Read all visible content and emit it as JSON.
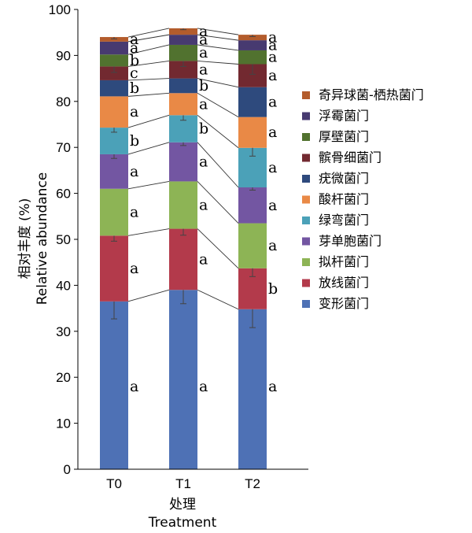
{
  "chart_data": {
    "type": "bar",
    "stacked": true,
    "categories": [
      "T0",
      "T1",
      "T2"
    ],
    "xlabel": "处理",
    "xlabel_en": "Treatment",
    "ylabel": "相对丰度 (%)",
    "ylabel_en": "Relative abundance",
    "ylim": [
      0,
      100
    ],
    "yticks": [
      0,
      10,
      20,
      30,
      40,
      50,
      60,
      70,
      80,
      90,
      100
    ],
    "grid": false,
    "legend_position": "right",
    "series": [
      {
        "name": "变形菌门",
        "color": "#4e71b5",
        "values": [
          36.5,
          39.0,
          34.8
        ],
        "errors": [
          3.8,
          3.0,
          4.0
        ],
        "sig": [
          "a",
          "a",
          "a"
        ]
      },
      {
        "name": "放线菌门",
        "color": "#b33a4b",
        "values": [
          14.3,
          13.3,
          8.9
        ],
        "errors": [
          1.2,
          1.4,
          1.8
        ],
        "sig": [
          "a",
          "a",
          "b"
        ]
      },
      {
        "name": "拟杆菌门",
        "color": "#8db455",
        "values": [
          10.2,
          10.3,
          9.8
        ],
        "errors": [
          0.0,
          0.0,
          0.0
        ],
        "sig": [
          "a",
          "a",
          "a"
        ]
      },
      {
        "name": "芽单胞菌门",
        "color": "#7356a2",
        "values": [
          7.5,
          8.5,
          7.8
        ],
        "errors": [
          0.9,
          0.7,
          0.6
        ],
        "sig": [
          "a",
          "a",
          "a"
        ]
      },
      {
        "name": "绿弯菌门",
        "color": "#4ba1b8",
        "values": [
          5.8,
          5.9,
          8.6
        ],
        "errors": [
          1.0,
          1.1,
          1.8
        ],
        "sig": [
          "b",
          "b",
          "a"
        ]
      },
      {
        "name": "酸杆菌门",
        "color": "#e98946",
        "values": [
          6.8,
          4.8,
          6.7
        ],
        "errors": [
          0.0,
          0.0,
          0.0
        ],
        "sig": [
          "a",
          "a",
          "a"
        ]
      },
      {
        "name": "疣微菌门",
        "color": "#2e4a7d",
        "values": [
          3.5,
          3.2,
          6.5
        ],
        "errors": [
          0.0,
          0.0,
          0.0
        ],
        "sig": [
          "b",
          "b",
          "a"
        ]
      },
      {
        "name": "髌骨细菌门",
        "color": "#722930",
        "values": [
          3.0,
          3.8,
          5.0
        ],
        "errors": [
          1.3,
          1.2,
          2.2
        ],
        "sig": [
          "c",
          "a",
          "a"
        ]
      },
      {
        "name": "厚壁菌门",
        "color": "#51722f",
        "values": [
          2.6,
          3.5,
          3.0
        ],
        "errors": [
          0.0,
          0.0,
          0.0
        ],
        "sig": [
          "b",
          "a",
          "a"
        ]
      },
      {
        "name": "浮霉菌门",
        "color": "#473a70",
        "values": [
          2.8,
          2.2,
          2.2
        ],
        "errors": [
          0.0,
          0.0,
          0.0
        ],
        "sig": [
          "a",
          "a",
          "a"
        ]
      },
      {
        "name": "奇异球菌-栖热菌门",
        "color": "#b35c2c",
        "values": [
          1.0,
          1.4,
          1.2
        ],
        "errors": [
          0.4,
          0.3,
          0.4
        ],
        "sig": [
          "a",
          "a",
          "a"
        ]
      }
    ]
  }
}
